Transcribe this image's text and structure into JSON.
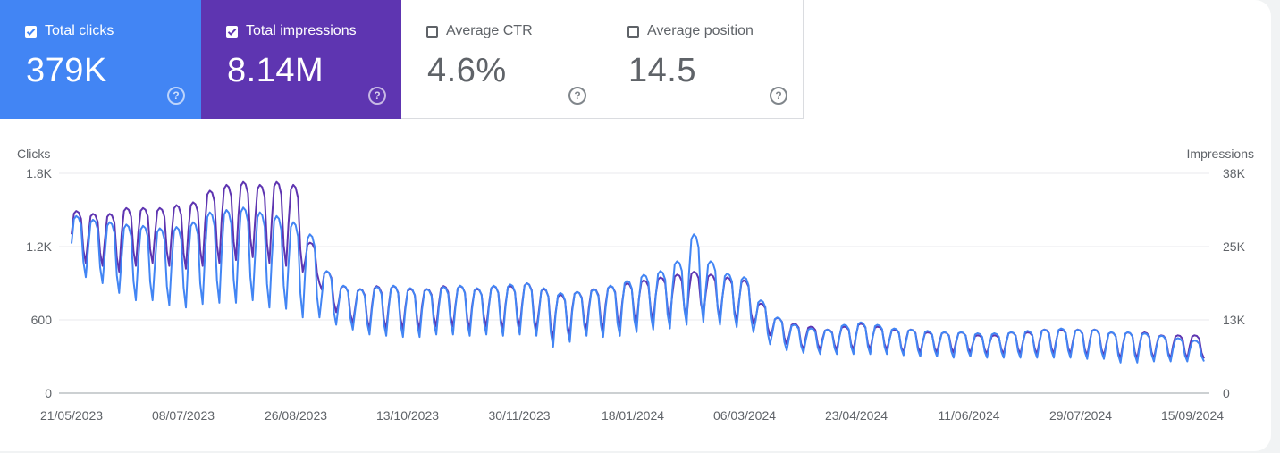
{
  "metrics": {
    "clicks": {
      "label": "Total clicks",
      "value": "379K",
      "checked": true,
      "color": "#4285f4"
    },
    "impressions": {
      "label": "Total impressions",
      "value": "8.14M",
      "checked": true,
      "color": "#5e35b1"
    },
    "ctr": {
      "label": "Average CTR",
      "value": "4.6%",
      "checked": false,
      "color": "#00897b"
    },
    "position": {
      "label": "Average position",
      "value": "14.5",
      "checked": false,
      "color": "#e8710a"
    }
  },
  "chart_data": {
    "type": "line",
    "left_axis": {
      "title": "Clicks",
      "ticks": [
        "1.8K",
        "1.2K",
        "600",
        "0"
      ],
      "range": [
        0,
        1800
      ]
    },
    "right_axis": {
      "title": "Impressions",
      "ticks": [
        "38K",
        "25K",
        "13K",
        "0"
      ],
      "range": [
        0,
        38000
      ]
    },
    "x_tick_labels": [
      "21/05/2023",
      "08/07/2023",
      "26/08/2023",
      "13/10/2023",
      "30/11/2023",
      "18/01/2024",
      "06/03/2024",
      "23/04/2024",
      "11/06/2024",
      "29/07/2024",
      "15/09/2024"
    ],
    "x_range": [
      "2023-05-21",
      "2024-09-25"
    ],
    "grid": true,
    "series": [
      {
        "name": "Clicks",
        "color": "#4285f4",
        "weekly_peak_values": [
          1450,
          1420,
          1400,
          1380,
          1370,
          1350,
          1360,
          1400,
          1480,
          1500,
          1520,
          1480,
          1450,
          1400,
          1300,
          1000,
          880,
          850,
          870,
          880,
          860,
          850,
          870,
          880,
          860,
          880,
          890,
          900,
          860,
          820,
          830,
          850,
          880,
          920,
          970,
          1000,
          1080,
          1300,
          1080,
          980,
          950,
          760,
          620,
          560,
          530,
          520,
          560,
          580,
          560,
          530,
          520,
          510,
          500,
          500,
          490,
          490,
          500,
          510,
          520,
          530,
          520,
          520,
          500,
          500,
          490,
          470,
          450,
          430
        ],
        "weekly_low_values": [
          950,
          900,
          820,
          760,
          760,
          720,
          700,
          730,
          740,
          740,
          760,
          700,
          690,
          620,
          620,
          560,
          520,
          480,
          470,
          460,
          460,
          480,
          480,
          470,
          480,
          470,
          480,
          470,
          380,
          420,
          470,
          460,
          470,
          500,
          520,
          530,
          560,
          580,
          560,
          540,
          500,
          400,
          350,
          330,
          320,
          320,
          320,
          320,
          320,
          310,
          300,
          300,
          290,
          300,
          290,
          290,
          290,
          290,
          290,
          290,
          280,
          280,
          250,
          250,
          260,
          260,
          260,
          260
        ]
      },
      {
        "name": "Impressions",
        "color": "#5e35b1",
        "weekly_peak_values": [
          31500,
          31000,
          31000,
          32000,
          32000,
          32000,
          32500,
          33000,
          35000,
          36000,
          36500,
          36000,
          36500,
          36000,
          26000,
          21000,
          18500,
          18000,
          18500,
          18500,
          18000,
          18000,
          18500,
          18500,
          18000,
          18500,
          18500,
          19000,
          18000,
          17000,
          17500,
          18000,
          18500,
          19000,
          19500,
          20000,
          20500,
          21000,
          20500,
          20000,
          19500,
          15500,
          13000,
          12000,
          11500,
          11000,
          11500,
          12000,
          11500,
          11000,
          11000,
          10500,
          10500,
          10500,
          10000,
          10000,
          10500,
          10500,
          11000,
          11000,
          11000,
          11000,
          10500,
          10500,
          10500,
          10000,
          10000,
          10000
        ],
        "weekly_low_values": [
          22500,
          22000,
          21000,
          22000,
          22500,
          22000,
          21500,
          22000,
          22500,
          23000,
          23500,
          22500,
          22000,
          21000,
          19000,
          14000,
          12000,
          11000,
          11000,
          11000,
          11000,
          11500,
          11500,
          11000,
          11500,
          11000,
          11500,
          11000,
          9500,
          10000,
          11000,
          11000,
          11500,
          12000,
          12500,
          13000,
          13000,
          13500,
          13000,
          12500,
          12000,
          10000,
          8500,
          7500,
          7500,
          7500,
          7500,
          7500,
          7500,
          7000,
          7000,
          7000,
          7000,
          7000,
          6800,
          6800,
          6800,
          6800,
          6800,
          6800,
          6500,
          6500,
          6000,
          6000,
          6000,
          6000,
          6000,
          6000
        ]
      }
    ]
  }
}
